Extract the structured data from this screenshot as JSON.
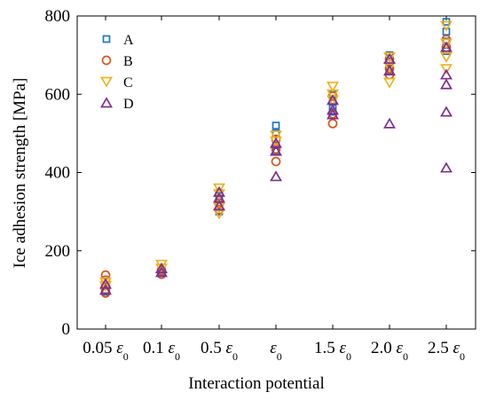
{
  "chart_data": {
    "type": "scatter",
    "title": "",
    "xlabel": "Interaction potential",
    "ylabel": "Ice adhesion strength [MPa]",
    "ylim": [
      0,
      800
    ],
    "yticks": [
      0,
      200,
      400,
      600,
      800
    ],
    "categories": [
      {
        "prefix": "0.05",
        "sym": "ε",
        "sub": "0"
      },
      {
        "prefix": "0.1",
        "sym": "ε",
        "sub": "0"
      },
      {
        "prefix": "0.5",
        "sym": "ε",
        "sub": "0"
      },
      {
        "prefix": "",
        "sym": "ε",
        "sub": "0"
      },
      {
        "prefix": "1.5",
        "sym": "ε",
        "sub": "0"
      },
      {
        "prefix": "2.0",
        "sym": "ε",
        "sub": "0"
      },
      {
        "prefix": "2.5",
        "sym": "ε",
        "sub": "0"
      }
    ],
    "grid": false,
    "legend_position": "top-left",
    "series": [
      {
        "name": "A",
        "marker": "square",
        "color": "#1f77c4",
        "points": [
          [
            0,
            110
          ],
          [
            0,
            100
          ],
          [
            0,
            95
          ],
          [
            1,
            150
          ],
          [
            1,
            145
          ],
          [
            2,
            330
          ],
          [
            2,
            315
          ],
          [
            2,
            300
          ],
          [
            2,
            340
          ],
          [
            3,
            520
          ],
          [
            3,
            500
          ],
          [
            3,
            470
          ],
          [
            3,
            455
          ],
          [
            4,
            600
          ],
          [
            4,
            580
          ],
          [
            4,
            565
          ],
          [
            4,
            555
          ],
          [
            5,
            700
          ],
          [
            5,
            680
          ],
          [
            5,
            660
          ],
          [
            6,
            785
          ],
          [
            6,
            760
          ],
          [
            6,
            735
          ],
          [
            6,
            710
          ]
        ]
      },
      {
        "name": "B",
        "marker": "circle",
        "color": "#d95319",
        "points": [
          [
            0,
            138
          ],
          [
            0,
            125
          ],
          [
            0,
            112
          ],
          [
            0,
            100
          ],
          [
            0,
            92
          ],
          [
            1,
            150
          ],
          [
            1,
            140
          ],
          [
            2,
            320
          ],
          [
            2,
            305
          ],
          [
            3,
            485
          ],
          [
            3,
            460
          ],
          [
            3,
            428
          ],
          [
            4,
            595
          ],
          [
            4,
            550
          ],
          [
            4,
            525
          ],
          [
            5,
            690
          ],
          [
            5,
            665
          ],
          [
            5,
            650
          ],
          [
            6,
            740
          ],
          [
            6,
            720
          ]
        ]
      },
      {
        "name": "C",
        "marker": "triangle-down",
        "color": "#edb120",
        "points": [
          [
            0,
            120
          ],
          [
            0,
            110
          ],
          [
            1,
            165
          ],
          [
            1,
            155
          ],
          [
            2,
            360
          ],
          [
            2,
            345
          ],
          [
            2,
            310
          ],
          [
            2,
            295
          ],
          [
            3,
            495
          ],
          [
            3,
            480
          ],
          [
            4,
            620
          ],
          [
            4,
            600
          ],
          [
            4,
            585
          ],
          [
            5,
            695
          ],
          [
            5,
            670
          ],
          [
            5,
            630
          ],
          [
            6,
            775
          ],
          [
            6,
            730
          ],
          [
            6,
            695
          ],
          [
            6,
            665
          ]
        ]
      },
      {
        "name": "D",
        "marker": "triangle-up",
        "color": "#7e2f8e",
        "points": [
          [
            0,
            115
          ],
          [
            0,
            100
          ],
          [
            1,
            155
          ],
          [
            1,
            145
          ],
          [
            2,
            350
          ],
          [
            2,
            335
          ],
          [
            2,
            315
          ],
          [
            3,
            475
          ],
          [
            3,
            455
          ],
          [
            3,
            390
          ],
          [
            4,
            585
          ],
          [
            4,
            560
          ],
          [
            4,
            548
          ],
          [
            5,
            690
          ],
          [
            5,
            660
          ],
          [
            5,
            525
          ],
          [
            6,
            720
          ],
          [
            6,
            650
          ],
          [
            6,
            625
          ],
          [
            6,
            555
          ],
          [
            6,
            412
          ]
        ]
      }
    ]
  }
}
